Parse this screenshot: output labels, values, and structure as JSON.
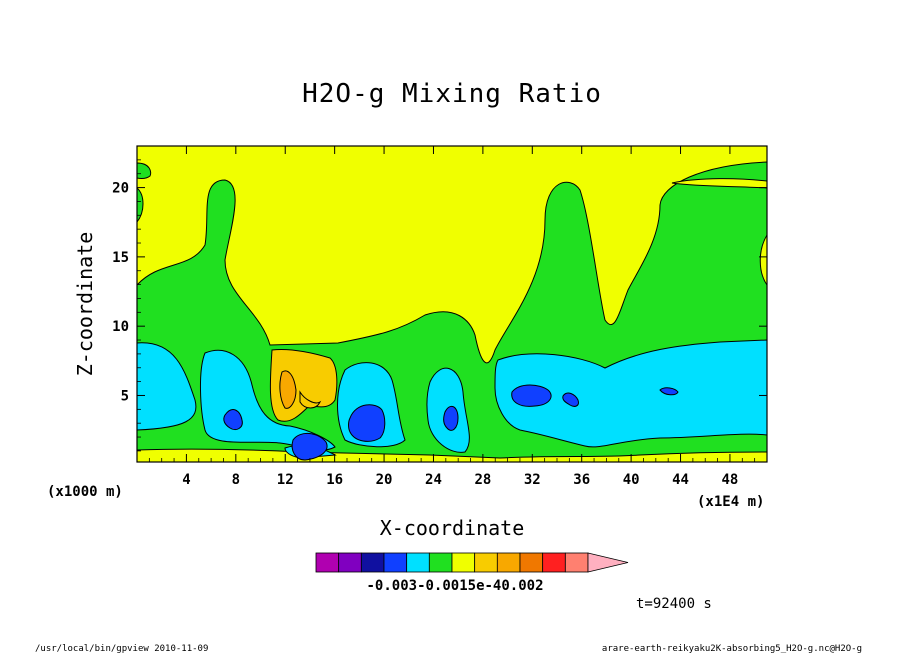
{
  "chart_data": {
    "type": "contour",
    "title": "H2O-g Mixing Ratio",
    "xlabel": "X-coordinate",
    "ylabel": "Z-coordinate",
    "x_unit": "(x1E4 m)",
    "y_unit": "(x1000 m)",
    "xlim": [
      0,
      51
    ],
    "ylim": [
      0.2,
      23
    ],
    "x_ticks": [
      4,
      8,
      12,
      16,
      20,
      24,
      28,
      32,
      36,
      40,
      44,
      48
    ],
    "y_ticks": [
      5,
      10,
      15,
      20
    ],
    "colorbar": {
      "colors": [
        "#b000b0",
        "#8000c0",
        "#1010a0",
        "#1040ff",
        "#00e0ff",
        "#20e020",
        "#f0ff00",
        "#f8cc00",
        "#f8a800",
        "#f07800",
        "#ff2020",
        "#ff8070",
        "#ffb0c0"
      ],
      "labels": [
        "-0.003",
        "-0.0015e-4",
        "0.002"
      ]
    },
    "time_label": "t=92400 s"
  },
  "footer": {
    "left": "/usr/local/bin/gpview   2010-11-09",
    "right": "arare-earth-reikyaku2K-absorbing5_H2O-g.nc@H2O-g"
  },
  "colors": {
    "yellow": "#f0ff00",
    "green": "#20e020",
    "cyan": "#00e0ff",
    "blue": "#1040ff",
    "orange_light": "#f8cc00",
    "orange": "#f8a800",
    "red": "#ff2020",
    "navy": "#1010a0"
  }
}
